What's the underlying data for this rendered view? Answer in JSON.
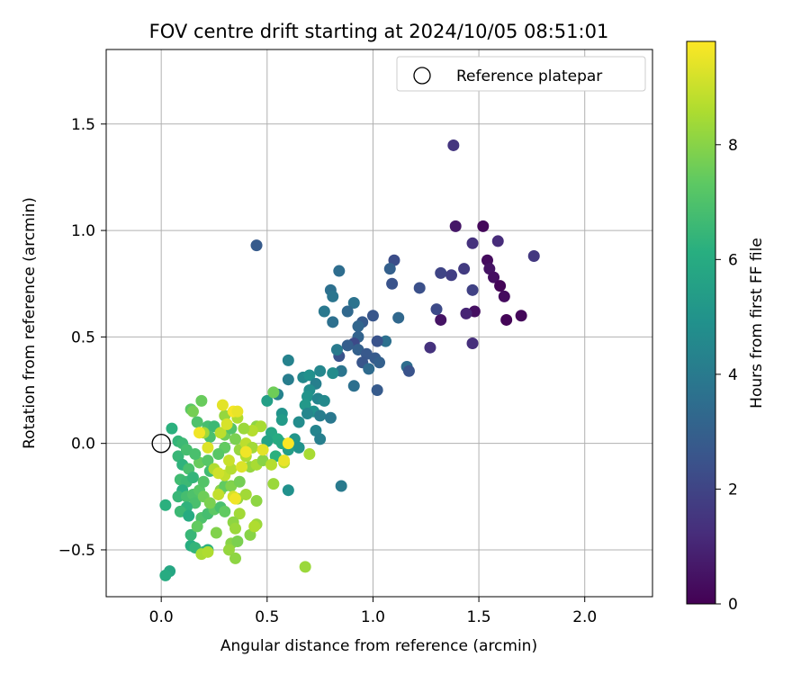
{
  "chart_data": {
    "type": "scatter",
    "title": "FOV centre drift starting at 2024/10/05 08:51:01",
    "xlabel": "Angular distance from reference (arcmin)",
    "ylabel": "Rotation from reference (arcmin)",
    "xlim": [
      -0.26,
      2.32
    ],
    "ylim": [
      -0.72,
      1.85
    ],
    "x_ticks": [
      "0.0",
      "0.5",
      "1.0",
      "1.5",
      "2.0"
    ],
    "x_tick_values": [
      0,
      0.5,
      1.0,
      1.5,
      2.0
    ],
    "y_ticks": [
      "−0.5",
      "0.0",
      "0.5",
      "1.0",
      "1.5"
    ],
    "y_tick_values": [
      -0.5,
      0,
      0.5,
      1.0,
      1.5
    ],
    "grid": true,
    "legend": {
      "position": "top-right",
      "label": "Reference platepar"
    },
    "reference_point": {
      "x": 0.0,
      "y": 0.0
    },
    "colorbar": {
      "label": "Hours from first FF file",
      "min": 0,
      "max": 9.8,
      "ticks": [
        "0",
        "2",
        "4",
        "6",
        "8"
      ],
      "tick_values": [
        0,
        2,
        4,
        6,
        8
      ],
      "colormap": "viridis"
    },
    "points": [
      {
        "x": 1.52,
        "y": 1.02,
        "h": 0.2
      },
      {
        "x": 1.39,
        "y": 1.02,
        "h": 0.6
      },
      {
        "x": 1.54,
        "y": 0.86,
        "h": 0.3
      },
      {
        "x": 1.55,
        "y": 0.82,
        "h": 0.5
      },
      {
        "x": 1.57,
        "y": 0.78,
        "h": 0.4
      },
      {
        "x": 1.6,
        "y": 0.74,
        "h": 0.1
      },
      {
        "x": 1.62,
        "y": 0.69,
        "h": 0.3
      },
      {
        "x": 1.7,
        "y": 0.6,
        "h": 0.2
      },
      {
        "x": 1.63,
        "y": 0.58,
        "h": 0.1
      },
      {
        "x": 1.48,
        "y": 0.62,
        "h": 0.4
      },
      {
        "x": 1.32,
        "y": 0.58,
        "h": 0.5
      },
      {
        "x": 1.44,
        "y": 0.61,
        "h": 1.0
      },
      {
        "x": 1.47,
        "y": 0.47,
        "h": 1.3
      },
      {
        "x": 1.38,
        "y": 1.4,
        "h": 1.5
      },
      {
        "x": 1.47,
        "y": 0.94,
        "h": 1.4
      },
      {
        "x": 1.59,
        "y": 0.95,
        "h": 1.2
      },
      {
        "x": 1.76,
        "y": 0.88,
        "h": 1.6
      },
      {
        "x": 1.43,
        "y": 0.82,
        "h": 1.7
      },
      {
        "x": 1.37,
        "y": 0.79,
        "h": 1.8
      },
      {
        "x": 1.32,
        "y": 0.8,
        "h": 2.0
      },
      {
        "x": 1.47,
        "y": 0.72,
        "h": 1.9
      },
      {
        "x": 1.3,
        "y": 0.63,
        "h": 2.2
      },
      {
        "x": 1.27,
        "y": 0.45,
        "h": 1.4
      },
      {
        "x": 1.22,
        "y": 0.73,
        "h": 2.4
      },
      {
        "x": 1.1,
        "y": 0.86,
        "h": 2.3
      },
      {
        "x": 1.08,
        "y": 0.82,
        "h": 3.0
      },
      {
        "x": 1.09,
        "y": 0.75,
        "h": 2.5
      },
      {
        "x": 1.12,
        "y": 0.59,
        "h": 3.3
      },
      {
        "x": 1.0,
        "y": 0.6,
        "h": 2.6
      },
      {
        "x": 1.06,
        "y": 0.48,
        "h": 3.6
      },
      {
        "x": 1.02,
        "y": 0.48,
        "h": 2.5
      },
      {
        "x": 0.95,
        "y": 0.57,
        "h": 2.8
      },
      {
        "x": 0.93,
        "y": 0.55,
        "h": 3.2
      },
      {
        "x": 0.93,
        "y": 0.5,
        "h": 3.1
      },
      {
        "x": 0.91,
        "y": 0.47,
        "h": 2.2
      },
      {
        "x": 0.88,
        "y": 0.46,
        "h": 2.9
      },
      {
        "x": 0.93,
        "y": 0.44,
        "h": 3.0
      },
      {
        "x": 0.97,
        "y": 0.42,
        "h": 2.7
      },
      {
        "x": 1.01,
        "y": 0.4,
        "h": 2.8
      },
      {
        "x": 0.95,
        "y": 0.38,
        "h": 2.6
      },
      {
        "x": 1.03,
        "y": 0.38,
        "h": 3.0
      },
      {
        "x": 0.98,
        "y": 0.35,
        "h": 3.4
      },
      {
        "x": 0.84,
        "y": 0.41,
        "h": 2.5
      },
      {
        "x": 0.83,
        "y": 0.44,
        "h": 4.0
      },
      {
        "x": 1.02,
        "y": 0.25,
        "h": 2.8
      },
      {
        "x": 0.91,
        "y": 0.27,
        "h": 3.6
      },
      {
        "x": 0.85,
        "y": 0.34,
        "h": 3.8
      },
      {
        "x": 1.16,
        "y": 0.36,
        "h": 3.5
      },
      {
        "x": 1.17,
        "y": 0.34,
        "h": 2.5
      },
      {
        "x": 0.84,
        "y": 0.81,
        "h": 3.5
      },
      {
        "x": 0.8,
        "y": 0.72,
        "h": 3.6
      },
      {
        "x": 0.81,
        "y": 0.69,
        "h": 3.8
      },
      {
        "x": 0.91,
        "y": 0.66,
        "h": 3.7
      },
      {
        "x": 0.88,
        "y": 0.62,
        "h": 3.3
      },
      {
        "x": 0.77,
        "y": 0.62,
        "h": 3.9
      },
      {
        "x": 0.81,
        "y": 0.57,
        "h": 3.6
      },
      {
        "x": 0.45,
        "y": 0.93,
        "h": 2.8
      },
      {
        "x": 0.85,
        "y": -0.2,
        "h": 4.0
      },
      {
        "x": 0.6,
        "y": 0.39,
        "h": 4.3
      },
      {
        "x": 0.67,
        "y": 0.31,
        "h": 4.6
      },
      {
        "x": 0.7,
        "y": 0.32,
        "h": 4.9
      },
      {
        "x": 0.75,
        "y": 0.34,
        "h": 4.5
      },
      {
        "x": 0.81,
        "y": 0.33,
        "h": 4.7
      },
      {
        "x": 0.73,
        "y": 0.28,
        "h": 4.2
      },
      {
        "x": 0.6,
        "y": 0.3,
        "h": 4.1
      },
      {
        "x": 0.55,
        "y": 0.23,
        "h": 4.3
      },
      {
        "x": 0.7,
        "y": 0.25,
        "h": 4.8
      },
      {
        "x": 0.69,
        "y": 0.22,
        "h": 5.0
      },
      {
        "x": 0.74,
        "y": 0.21,
        "h": 4.4
      },
      {
        "x": 0.77,
        "y": 0.2,
        "h": 4.6
      },
      {
        "x": 0.68,
        "y": 0.18,
        "h": 5.2
      },
      {
        "x": 0.72,
        "y": 0.15,
        "h": 4.9
      },
      {
        "x": 0.69,
        "y": 0.14,
        "h": 4.5
      },
      {
        "x": 0.75,
        "y": 0.13,
        "h": 4.1
      },
      {
        "x": 0.8,
        "y": 0.12,
        "h": 3.9
      },
      {
        "x": 0.57,
        "y": 0.14,
        "h": 5.0
      },
      {
        "x": 0.57,
        "y": 0.11,
        "h": 5.3
      },
      {
        "x": 0.65,
        "y": 0.1,
        "h": 4.7
      },
      {
        "x": 0.5,
        "y": 0.2,
        "h": 5.5
      },
      {
        "x": 0.73,
        "y": 0.06,
        "h": 4.4
      },
      {
        "x": 0.75,
        "y": 0.02,
        "h": 4.2
      },
      {
        "x": 0.63,
        "y": 0.02,
        "h": 5.1
      },
      {
        "x": 0.65,
        "y": -0.02,
        "h": 5.0
      },
      {
        "x": 0.6,
        "y": -0.03,
        "h": 5.4
      },
      {
        "x": 0.6,
        "y": -0.22,
        "h": 4.9
      },
      {
        "x": 0.53,
        "y": 0.24,
        "h": 7.6
      },
      {
        "x": 0.52,
        "y": 0.05,
        "h": 5.8
      },
      {
        "x": 0.55,
        "y": 0.02,
        "h": 6.0
      },
      {
        "x": 0.5,
        "y": 0.01,
        "h": 5.6
      },
      {
        "x": 0.57,
        "y": 0.0,
        "h": 5.9
      },
      {
        "x": 0.54,
        "y": -0.06,
        "h": 6.2
      },
      {
        "x": 0.05,
        "y": 0.07,
        "h": 6.2
      },
      {
        "x": 0.08,
        "y": 0.01,
        "h": 6.4
      },
      {
        "x": 0.1,
        "y": 0.0,
        "h": 6.6
      },
      {
        "x": 0.08,
        "y": -0.06,
        "h": 6.5
      },
      {
        "x": 0.12,
        "y": -0.03,
        "h": 6.8
      },
      {
        "x": 0.1,
        "y": -0.1,
        "h": 6.3
      },
      {
        "x": 0.13,
        "y": -0.12,
        "h": 6.9
      },
      {
        "x": 0.09,
        "y": -0.17,
        "h": 6.7
      },
      {
        "x": 0.12,
        "y": -0.18,
        "h": 6.6
      },
      {
        "x": 0.15,
        "y": -0.16,
        "h": 6.4
      },
      {
        "x": 0.1,
        "y": -0.22,
        "h": 6.1
      },
      {
        "x": 0.08,
        "y": -0.25,
        "h": 6.5
      },
      {
        "x": 0.12,
        "y": -0.25,
        "h": 6.8
      },
      {
        "x": 0.15,
        "y": -0.24,
        "h": 7.0
      },
      {
        "x": 0.18,
        "y": -0.22,
        "h": 7.2
      },
      {
        "x": 0.16,
        "y": -0.28,
        "h": 6.9
      },
      {
        "x": 0.12,
        "y": -0.3,
        "h": 6.3
      },
      {
        "x": 0.09,
        "y": -0.32,
        "h": 6.6
      },
      {
        "x": 0.13,
        "y": -0.34,
        "h": 6.0
      },
      {
        "x": 0.02,
        "y": -0.29,
        "h": 6.2
      },
      {
        "x": 0.14,
        "y": -0.48,
        "h": 6.1
      },
      {
        "x": 0.16,
        "y": -0.49,
        "h": 6.4
      },
      {
        "x": 0.14,
        "y": -0.43,
        "h": 6.5
      },
      {
        "x": 0.04,
        "y": -0.6,
        "h": 5.8
      },
      {
        "x": 0.02,
        "y": -0.62,
        "h": 6.0
      },
      {
        "x": 0.2,
        "y": -0.51,
        "h": 6.6
      },
      {
        "x": 0.22,
        "y": -0.5,
        "h": 6.2
      },
      {
        "x": 0.19,
        "y": -0.35,
        "h": 7.0
      },
      {
        "x": 0.22,
        "y": -0.33,
        "h": 6.8
      },
      {
        "x": 0.25,
        "y": -0.31,
        "h": 7.3
      },
      {
        "x": 0.28,
        "y": -0.3,
        "h": 6.9
      },
      {
        "x": 0.3,
        "y": -0.32,
        "h": 7.4
      },
      {
        "x": 0.23,
        "y": -0.13,
        "h": 6.7
      },
      {
        "x": 0.2,
        "y": -0.18,
        "h": 7.1
      },
      {
        "x": 0.18,
        "y": -0.09,
        "h": 7.5
      },
      {
        "x": 0.16,
        "y": -0.05,
        "h": 6.9
      },
      {
        "x": 0.22,
        "y": -0.08,
        "h": 7.2
      },
      {
        "x": 0.14,
        "y": 0.16,
        "h": 7.3
      },
      {
        "x": 0.19,
        "y": 0.2,
        "h": 7.5
      },
      {
        "x": 0.15,
        "y": 0.15,
        "h": 7.7
      },
      {
        "x": 0.17,
        "y": 0.1,
        "h": 7.0
      },
      {
        "x": 0.22,
        "y": 0.08,
        "h": 6.8
      },
      {
        "x": 0.25,
        "y": 0.08,
        "h": 6.6
      },
      {
        "x": 0.23,
        "y": 0.03,
        "h": 6.9
      },
      {
        "x": 0.3,
        "y": 0.04,
        "h": 7.6
      },
      {
        "x": 0.33,
        "y": 0.07,
        "h": 7.1
      },
      {
        "x": 0.35,
        "y": 0.02,
        "h": 7.8
      },
      {
        "x": 0.3,
        "y": -0.02,
        "h": 7.4
      },
      {
        "x": 0.27,
        "y": -0.05,
        "h": 7.2
      },
      {
        "x": 0.2,
        "y": -0.25,
        "h": 7.6
      },
      {
        "x": 0.23,
        "y": -0.28,
        "h": 7.8
      },
      {
        "x": 0.28,
        "y": -0.22,
        "h": 8.0
      },
      {
        "x": 0.3,
        "y": -0.2,
        "h": 7.4
      },
      {
        "x": 0.33,
        "y": -0.2,
        "h": 7.9
      },
      {
        "x": 0.37,
        "y": -0.18,
        "h": 7.7
      },
      {
        "x": 0.36,
        "y": -0.26,
        "h": 8.2
      },
      {
        "x": 0.37,
        "y": -0.33,
        "h": 8.4
      },
      {
        "x": 0.34,
        "y": -0.37,
        "h": 8.1
      },
      {
        "x": 0.35,
        "y": -0.4,
        "h": 8.3
      },
      {
        "x": 0.33,
        "y": -0.47,
        "h": 8.0
      },
      {
        "x": 0.36,
        "y": -0.46,
        "h": 7.8
      },
      {
        "x": 0.32,
        "y": -0.5,
        "h": 8.2
      },
      {
        "x": 0.26,
        "y": -0.42,
        "h": 7.9
      },
      {
        "x": 0.19,
        "y": -0.52,
        "h": 8.5
      },
      {
        "x": 0.22,
        "y": -0.51,
        "h": 8.6
      },
      {
        "x": 0.17,
        "y": -0.39,
        "h": 7.4
      },
      {
        "x": 0.35,
        "y": -0.54,
        "h": 8.1
      },
      {
        "x": 0.42,
        "y": -0.43,
        "h": 8.0
      },
      {
        "x": 0.45,
        "y": -0.38,
        "h": 8.3
      },
      {
        "x": 0.44,
        "y": -0.39,
        "h": 8.6
      },
      {
        "x": 0.45,
        "y": -0.27,
        "h": 8.1
      },
      {
        "x": 0.4,
        "y": -0.24,
        "h": 8.4
      },
      {
        "x": 0.42,
        "y": -0.11,
        "h": 8.2
      },
      {
        "x": 0.45,
        "y": -0.1,
        "h": 8.5
      },
      {
        "x": 0.48,
        "y": -0.08,
        "h": 8.0
      },
      {
        "x": 0.52,
        "y": -0.1,
        "h": 8.7
      },
      {
        "x": 0.53,
        "y": -0.19,
        "h": 8.3
      },
      {
        "x": 0.58,
        "y": -0.09,
        "h": 8.9
      },
      {
        "x": 0.4,
        "y": -0.06,
        "h": 8.6
      },
      {
        "x": 0.37,
        "y": -0.03,
        "h": 8.2
      },
      {
        "x": 0.4,
        "y": 0.0,
        "h": 8.8
      },
      {
        "x": 0.43,
        "y": -0.02,
        "h": 8.4
      },
      {
        "x": 0.45,
        "y": 0.08,
        "h": 8.1
      },
      {
        "x": 0.47,
        "y": 0.08,
        "h": 8.5
      },
      {
        "x": 0.43,
        "y": 0.06,
        "h": 8.7
      },
      {
        "x": 0.39,
        "y": 0.07,
        "h": 8.3
      },
      {
        "x": 0.36,
        "y": 0.12,
        "h": 8.6
      },
      {
        "x": 0.3,
        "y": 0.13,
        "h": 8.2
      },
      {
        "x": 0.28,
        "y": 0.05,
        "h": 8.8
      },
      {
        "x": 0.2,
        "y": 0.05,
        "h": 8.4
      },
      {
        "x": 0.25,
        "y": -0.12,
        "h": 8.6
      },
      {
        "x": 0.3,
        "y": -0.15,
        "h": 8.9
      },
      {
        "x": 0.27,
        "y": -0.14,
        "h": 9.1
      },
      {
        "x": 0.33,
        "y": -0.12,
        "h": 8.7
      },
      {
        "x": 0.34,
        "y": -0.25,
        "h": 9.2
      },
      {
        "x": 0.27,
        "y": -0.24,
        "h": 8.9
      },
      {
        "x": 0.32,
        "y": -0.08,
        "h": 9.0
      },
      {
        "x": 0.22,
        "y": -0.02,
        "h": 9.3
      },
      {
        "x": 0.18,
        "y": 0.05,
        "h": 9.6
      },
      {
        "x": 0.29,
        "y": 0.18,
        "h": 9.4
      },
      {
        "x": 0.34,
        "y": 0.15,
        "h": 9.7
      },
      {
        "x": 0.36,
        "y": 0.15,
        "h": 9.5
      },
      {
        "x": 0.31,
        "y": 0.09,
        "h": 9.2
      },
      {
        "x": 0.4,
        "y": -0.04,
        "h": 9.6
      },
      {
        "x": 0.48,
        "y": -0.03,
        "h": 9.4
      },
      {
        "x": 0.6,
        "y": 0.0,
        "h": 9.8
      },
      {
        "x": 0.58,
        "y": -0.08,
        "h": 9.5
      },
      {
        "x": 0.38,
        "y": -0.11,
        "h": 9.3
      },
      {
        "x": 0.35,
        "y": -0.26,
        "h": 9.6
      },
      {
        "x": 0.7,
        "y": -0.05,
        "h": 8.5
      },
      {
        "x": 0.68,
        "y": -0.58,
        "h": 8.3
      }
    ]
  }
}
